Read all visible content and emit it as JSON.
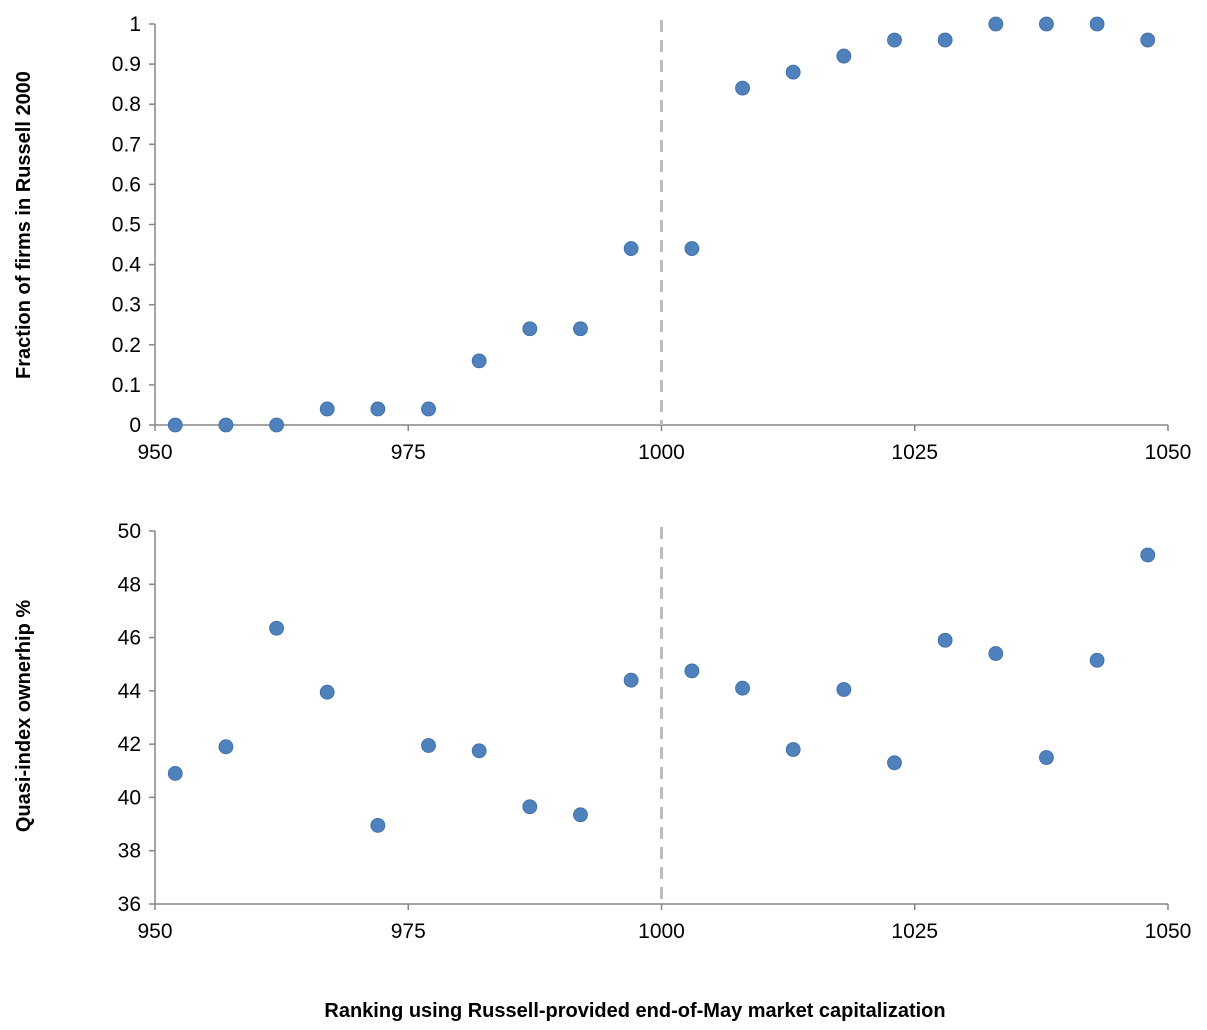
{
  "chart_data": [
    {
      "type": "scatter",
      "ylabel": "Fraction of firms in Russell 2000",
      "xlim": [
        950,
        1050
      ],
      "ylim": [
        0,
        1
      ],
      "x_ticks": [
        "950",
        "975",
        "1000",
        "1025",
        "1050"
      ],
      "y_ticks": [
        "0",
        "0.1",
        "0.2",
        "0.3",
        "0.4",
        "0.5",
        "0.6",
        "0.7",
        "0.8",
        "0.9",
        "1"
      ],
      "cutoff_x": 1000,
      "color": "#4f81bd",
      "x": [
        952,
        957,
        962,
        967,
        972,
        977,
        982,
        987,
        992,
        997,
        1003,
        1008,
        1013,
        1018,
        1023,
        1028,
        1033,
        1038,
        1043,
        1048
      ],
      "y": [
        0,
        0,
        0,
        0.04,
        0.04,
        0.04,
        0.16,
        0.24,
        0.24,
        0.44,
        0.44,
        0.84,
        0.88,
        0.92,
        0.96,
        0.96,
        1.0,
        1.0,
        1.0,
        0.96
      ]
    },
    {
      "type": "scatter",
      "ylabel": "Quasi-index ownerhip %",
      "xlim": [
        950,
        1050
      ],
      "ylim": [
        36,
        50
      ],
      "x_ticks": [
        "950",
        "975",
        "1000",
        "1025",
        "1050"
      ],
      "y_ticks": [
        "36",
        "38",
        "40",
        "42",
        "44",
        "46",
        "48",
        "50"
      ],
      "cutoff_x": 1000,
      "color": "#4f81bd",
      "x": [
        952,
        957,
        962,
        967,
        972,
        977,
        982,
        987,
        992,
        997,
        1003,
        1008,
        1013,
        1018,
        1023,
        1028,
        1033,
        1038,
        1043,
        1048
      ],
      "y": [
        40.9,
        41.9,
        46.35,
        43.95,
        38.95,
        41.95,
        41.75,
        39.65,
        39.35,
        44.4,
        44.75,
        44.1,
        41.8,
        44.05,
        41.3,
        45.9,
        45.4,
        41.5,
        45.15,
        49.1
      ]
    }
  ],
  "xlabel": "Ranking using Russell-provided end-of-May market capitalization"
}
